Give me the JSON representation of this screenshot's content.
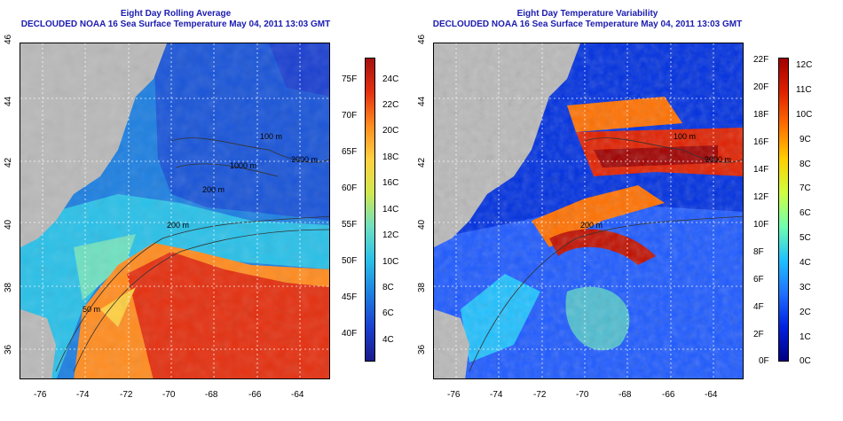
{
  "left": {
    "title_line1": "Eight Day Rolling Average",
    "title_line2": "DECLOUDED NOAA 16 Sea Surface Temperature May 04, 2011 13:03 GMT",
    "x_ticks": [
      "-76",
      "-74",
      "-72",
      "-70",
      "-68",
      "-66",
      "-64"
    ],
    "y_ticks": [
      "36",
      "38",
      "40",
      "42",
      "44",
      "46"
    ],
    "isobaths": [
      "100 m",
      "1000 m",
      "200 m",
      "2000 m",
      "200 m",
      "50 m"
    ],
    "colorbar_f": [
      "75F",
      "70F",
      "65F",
      "60F",
      "55F",
      "50F",
      "45F",
      "40F"
    ],
    "colorbar_c": [
      "24C",
      "22C",
      "20C",
      "18C",
      "16C",
      "14C",
      "12C",
      "10C",
      "8C",
      "6C",
      "4C"
    ]
  },
  "right": {
    "title_line1": "Eight Day Temperature Variability",
    "title_line2": "DECLOUDED NOAA 16 Sea Surface Temperature May 04, 2011 13:03 GMT",
    "x_ticks": [
      "-76",
      "-74",
      "-72",
      "-70",
      "-68",
      "-66",
      "-64"
    ],
    "y_ticks": [
      "36",
      "38",
      "40",
      "42",
      "44",
      "46"
    ],
    "isobaths": [
      "100 m",
      "2000 m",
      "200 m"
    ],
    "colorbar_f": [
      "22F",
      "20F",
      "18F",
      "16F",
      "14F",
      "12F",
      "10F",
      "8F",
      "6F",
      "4F",
      "2F",
      "0F"
    ],
    "colorbar_c": [
      "12C",
      "11C",
      "10C",
      "9C",
      "8C",
      "7C",
      "6C",
      "5C",
      "4C",
      "3C",
      "2C",
      "1C",
      "0C"
    ]
  },
  "colors": {
    "land": "#b9b9b9",
    "title": "#1b1bb0",
    "sst_scale": [
      "#1a1a8a",
      "#1a3fd0",
      "#1d7fe0",
      "#2ac0e8",
      "#6fe0c0",
      "#d0e850",
      "#ffd040",
      "#ff8c20",
      "#e43010",
      "#a51010"
    ],
    "var_scale": [
      "#000080",
      "#0020e0",
      "#2070ff",
      "#20c0ff",
      "#70ffb0",
      "#d0ff40",
      "#ffd000",
      "#ff7000",
      "#e02000",
      "#a00000"
    ]
  }
}
